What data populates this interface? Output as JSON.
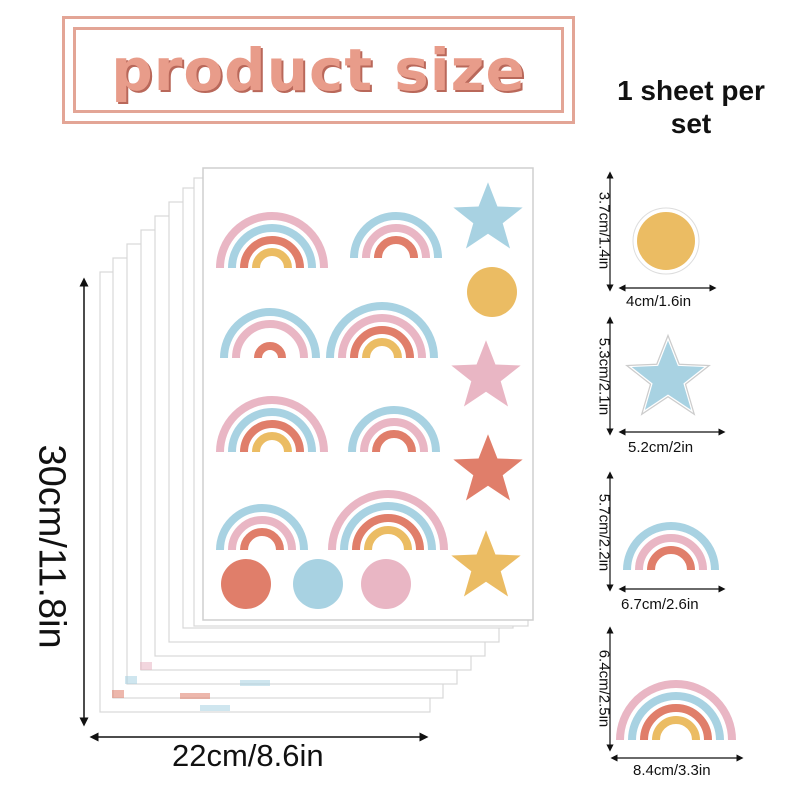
{
  "title": "product size",
  "sheet_count": "1 sheet per set",
  "main_sheet": {
    "width_label": "22cm/8.6in",
    "height_label": "30cm/11.8in"
  },
  "items": [
    {
      "name": "circle-sticker",
      "height_label": "3.7cm/1.4in",
      "width_label": "4cm/1.6in"
    },
    {
      "name": "star-sticker",
      "height_label": "5.3cm/2.1in",
      "width_label": "5.2cm/2in"
    },
    {
      "name": "small-rainbow-sticker",
      "height_label": "5.7cm/2.2in",
      "width_label": "6.7cm/2.6in"
    },
    {
      "name": "large-rainbow-sticker",
      "height_label": "6.4cm/2.5in",
      "width_label": "8.4cm/3.3in"
    }
  ],
  "colors": {
    "title": "#e89c8a",
    "border": "#e3a596",
    "pink": "#e9b6c4",
    "blue": "#a8d2e2",
    "coral": "#e07e6a",
    "yellow": "#ebbc63"
  }
}
